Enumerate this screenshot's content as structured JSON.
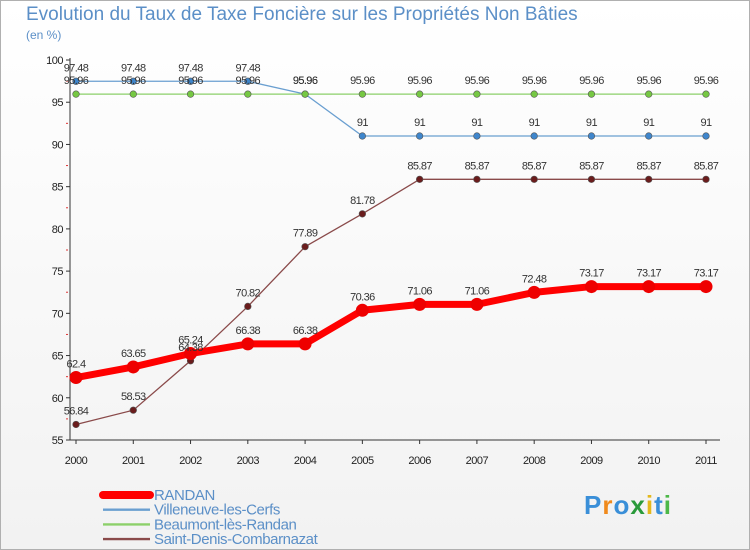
{
  "header": {
    "title": "Evolution du Taux de Taxe Foncière sur les Propriétés Non Bâties",
    "unit": "(en %)"
  },
  "logo": {
    "letters": [
      "P",
      "r",
      "o",
      "x",
      "i",
      "t",
      "i"
    ],
    "colors": [
      "#3a8fd8",
      "#f08a1c",
      "#3a8fd8",
      "#2a9a3a",
      "#e4b81c",
      "#3a8fd8",
      "#4db848"
    ]
  },
  "chart_data": {
    "type": "line",
    "title": "Evolution du Taux de Taxe Foncière sur les Propriétés Non Bâties",
    "ylabel": "(en %)",
    "xlabel": "",
    "x": [
      "2000",
      "2001",
      "2002",
      "2003",
      "2004",
      "2005",
      "2006",
      "2007",
      "2008",
      "2009",
      "2010",
      "2011"
    ],
    "ylim": [
      55,
      100
    ],
    "yticks": [
      55,
      60,
      65,
      70,
      75,
      80,
      85,
      90,
      95,
      100
    ],
    "grid": false,
    "legend": "bottom-left",
    "series": [
      {
        "name": "RANDAN",
        "color": "#ff0000",
        "point_color": "#ee0000",
        "emphasis": true,
        "values": [
          62.4,
          63.65,
          65.24,
          66.38,
          66.38,
          70.36,
          71.06,
          71.06,
          72.48,
          73.17,
          73.17,
          73.17
        ],
        "labels": [
          "62.4",
          "63.65",
          "65.24",
          "66.38",
          "66.38",
          "70.36",
          "71.06",
          "71.06",
          "72.48",
          "73.17",
          "73.17",
          "73.17"
        ]
      },
      {
        "name": "Villeneuve-les-Cerfs",
        "color": "#6a9fd0",
        "point_color": "#3f86cc",
        "emphasis": false,
        "values": [
          97.48,
          97.48,
          97.48,
          97.48,
          95.96,
          91,
          91,
          91,
          91,
          91,
          91,
          91
        ],
        "labels": [
          "97.48",
          "97.48",
          "97.48",
          "97.48",
          "95.96",
          "91",
          "91",
          "91",
          "91",
          "91",
          "91",
          "91"
        ]
      },
      {
        "name": "Beaumont-lès-Randan",
        "color": "#8cd06a",
        "point_color": "#76c843",
        "emphasis": false,
        "values": [
          95.96,
          95.96,
          95.96,
          95.96,
          95.96,
          95.96,
          95.96,
          95.96,
          95.96,
          95.96,
          95.96,
          95.96
        ],
        "labels": [
          "95.96",
          "95.96",
          "95.96",
          "95.96",
          "95.96",
          "95.96",
          "95.96",
          "95.96",
          "95.96",
          "95.96",
          "95.96",
          "95.96"
        ]
      },
      {
        "name": "Saint-Denis-Combarnazat",
        "color": "#8a4a4a",
        "point_color": "#6a1c1c",
        "emphasis": false,
        "values": [
          56.84,
          58.53,
          64.38,
          70.82,
          77.89,
          81.78,
          85.87,
          85.87,
          85.87,
          85.87,
          85.87,
          85.87
        ],
        "labels": [
          "56.84",
          "58.53",
          "64.38",
          "70.82",
          "77.89",
          "81.78",
          "85.87",
          "85.87",
          "85.87",
          "85.87",
          "85.87",
          "85.87"
        ]
      }
    ]
  }
}
